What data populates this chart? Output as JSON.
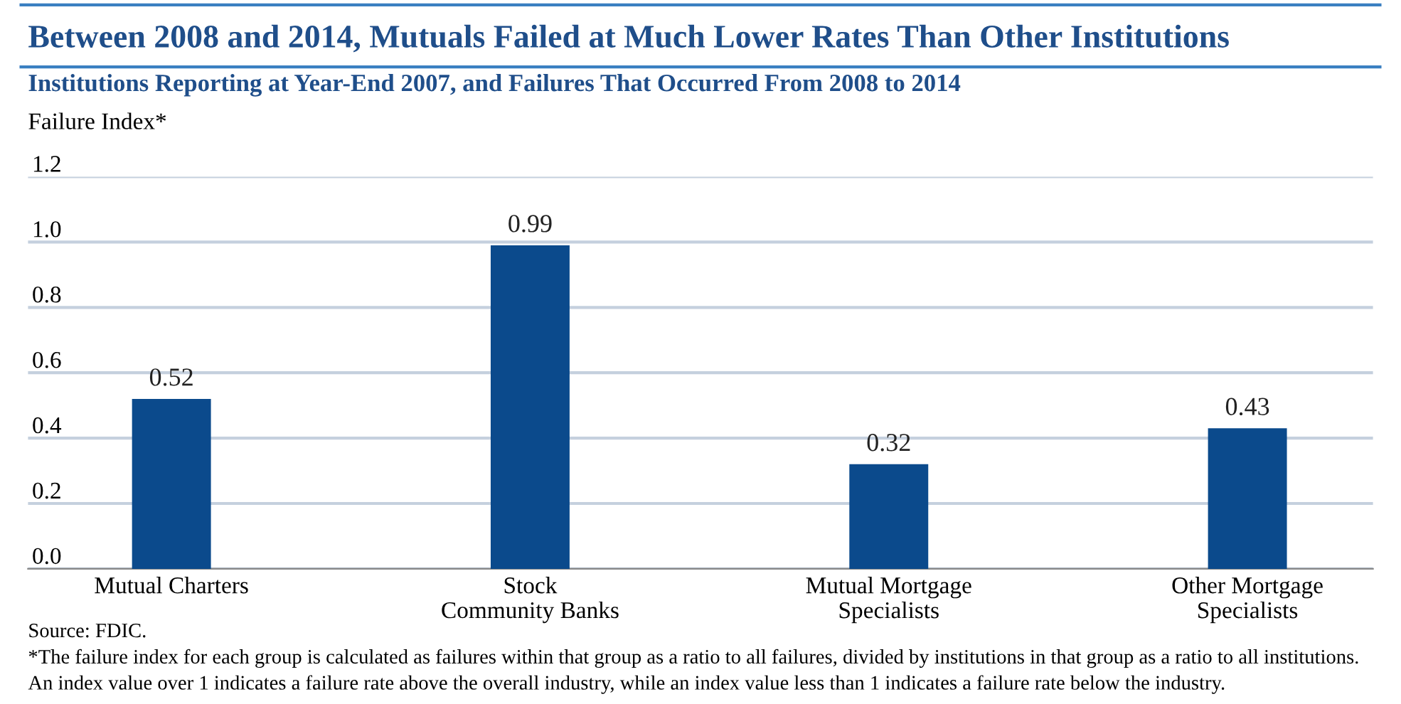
{
  "chart_data": {
    "type": "bar",
    "title": "Between 2008 and 2014, Mutuals Failed at Much Lower Rates Than Other Institutions",
    "subtitle": "Institutions Reporting at Year-End 2007, and Failures That Occurred From 2008 to 2014",
    "ylabel": "Failure Index*",
    "categories": [
      "Mutual Charters",
      "Stock\nCommunity Banks",
      "Mutual Mortgage\nSpecialists",
      "Other Mortgage\nSpecialists"
    ],
    "values": [
      0.52,
      0.99,
      0.32,
      0.43
    ],
    "color": "#0b4a8c",
    "data_labels": true,
    "ylim": [
      0,
      1.2
    ],
    "yticks": [
      {
        "value": 0,
        "label": "0.0"
      },
      0.2,
      0.4,
      0.6,
      0.8,
      {
        "value": 1,
        "label": "1.0"
      },
      1.2
    ],
    "grid": "y",
    "annotations": [
      "Source: FDIC.",
      "*The failure index for each group is calculated as failures within that group as a ratio to all failures, divided by institutions in that group as a ratio to all institutions.",
      "An index value over 1 indicates a failure rate above the overall industry, while an index value less than 1 indicates a failure rate below the industry."
    ]
  }
}
